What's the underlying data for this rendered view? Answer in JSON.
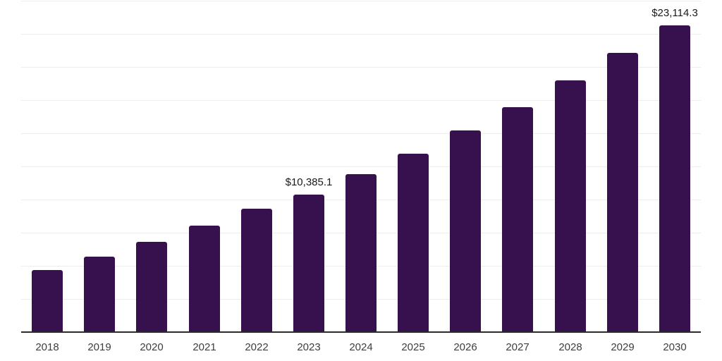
{
  "chart_data": {
    "type": "bar",
    "title": "",
    "xlabel": "",
    "ylabel": "",
    "categories": [
      "2018",
      "2019",
      "2020",
      "2021",
      "2022",
      "2023",
      "2024",
      "2025",
      "2026",
      "2027",
      "2028",
      "2029",
      "2030"
    ],
    "values": [
      4700,
      5680,
      6820,
      8040,
      9320,
      10385.1,
      11890,
      13480,
      15210,
      16990,
      18980,
      21050,
      23114.3
    ],
    "data_labels": [
      {
        "category": "2023",
        "text": "$10,385.1"
      },
      {
        "category": "2030",
        "text": "$23,114.3"
      }
    ],
    "ylim": [
      0,
      25000
    ],
    "grid_step": 2500,
    "grid": true,
    "legend": "none",
    "colors": {
      "bar": "#36114e",
      "axis_line": "#2b2b2b",
      "gridline": "#ededed",
      "tick_label": "#3d3d3d",
      "data_label": "#1a1a1a",
      "background": "#ffffff"
    }
  }
}
